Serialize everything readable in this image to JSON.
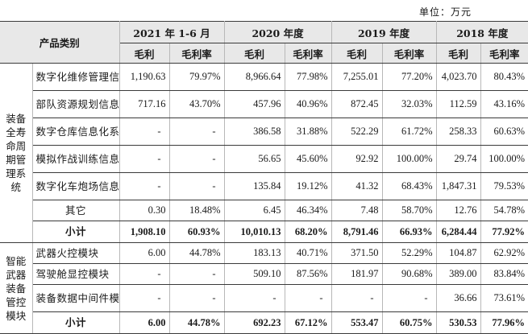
{
  "unit": "单位：万元",
  "header": {
    "category": "产品类别",
    "periods": [
      "2021 年 1-6 月",
      "2020 年度",
      "2019 年度",
      "2018 年度"
    ],
    "gross_profit": "毛利",
    "gross_margin": "毛利率"
  },
  "groups": [
    {
      "name_chars": [
        "装备",
        "全寿",
        "命周",
        "期管",
        "理系",
        "统"
      ],
      "rows": [
        {
          "product": "数字化维修管理信息化系统",
          "values": [
            "1,190.63",
            "79.97%",
            "8,966.64",
            "77.98%",
            "7,255.01",
            "77.20%",
            "4,023.70",
            "80.43%"
          ]
        },
        {
          "product": "部队资源规划信息化系统",
          "values": [
            "717.16",
            "43.70%",
            "457.96",
            "40.96%",
            "872.45",
            "32.03%",
            "112.59",
            "43.16%"
          ]
        },
        {
          "product": "数字仓库信息化系统",
          "values": [
            "-",
            "-",
            "386.58",
            "31.88%",
            "522.29",
            "61.72%",
            "258.33",
            "60.63%"
          ]
        },
        {
          "product": "模拟作战训练信息化系统",
          "values": [
            "-",
            "-",
            "56.65",
            "45.60%",
            "92.92",
            "100.00%",
            "29.74",
            "100.00%"
          ]
        },
        {
          "product": "数字化车炮场信息化系统",
          "values": [
            "-",
            "-",
            "135.84",
            "19.12%",
            "41.32",
            "68.43%",
            "1,847.31",
            "79.53%"
          ]
        },
        {
          "product": "其它",
          "values": [
            "0.30",
            "18.48%",
            "6.45",
            "46.34%",
            "7.48",
            "58.70%",
            "12.76",
            "54.78%"
          ]
        }
      ],
      "subtotal": {
        "label": "小计",
        "values": [
          "1,908.10",
          "60.93%",
          "10,010.13",
          "68.20%",
          "8,791.46",
          "66.93%",
          "6,284.44",
          "77.92%"
        ]
      }
    },
    {
      "name_chars": [
        "智能",
        "武器",
        "装备",
        "管控",
        "模块"
      ],
      "rows": [
        {
          "product": "武器火控模块",
          "values": [
            "6.00",
            "44.78%",
            "183.13",
            "40.71%",
            "371.50",
            "52.29%",
            "104.87",
            "62.92%"
          ]
        },
        {
          "product": "驾驶舱显控模块",
          "values": [
            "-",
            "-",
            "509.10",
            "87.56%",
            "181.97",
            "90.68%",
            "389.00",
            "83.84%"
          ]
        },
        {
          "product": "装备数据中间件模块",
          "values": [
            "-",
            "-",
            "-",
            "-",
            "-",
            "-",
            "36.66",
            "73.61%"
          ]
        }
      ],
      "subtotal": {
        "label": "小计",
        "values": [
          "6.00",
          "44.78%",
          "692.23",
          "67.12%",
          "553.47",
          "60.75%",
          "530.53",
          "77.96%"
        ]
      }
    }
  ]
}
